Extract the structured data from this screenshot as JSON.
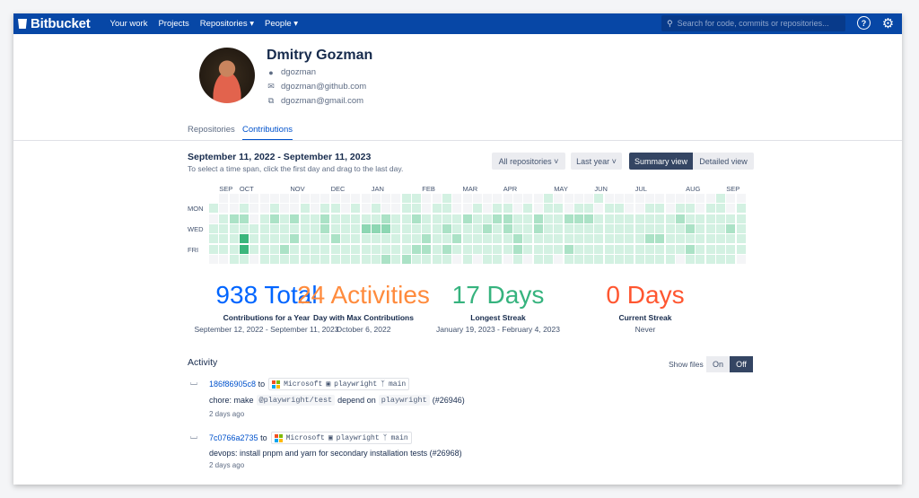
{
  "nav": {
    "brand": "Bitbucket",
    "items": [
      {
        "label": "Your work"
      },
      {
        "label": "Projects"
      },
      {
        "label": "Repositories",
        "dropdown": true
      },
      {
        "label": "People",
        "dropdown": true
      }
    ],
    "search_placeholder": "Search for code, commits or repositories...",
    "chevron": "▾"
  },
  "profile": {
    "name": "Dmitry Gozman",
    "username": "dgozman",
    "email1": "dgozman@github.com",
    "email2": "dgozman@gmail.com"
  },
  "tabs": [
    {
      "label": "Repositories",
      "active": false
    },
    {
      "label": "Contributions",
      "active": true
    }
  ],
  "contrib": {
    "range": "September 11, 2022 - September 11, 2023",
    "hint": "To select a time span, click the first day and drag to the last day.",
    "repo_filter": "All repositories ˅",
    "period_filter": "Last year ˅",
    "summary_view": "Summary view",
    "detailed_view": "Detailed view"
  },
  "heatmap": {
    "colors": [
      "#f4f5f7",
      "#d3f1e2",
      "#abe2c6",
      "#8dd7b3",
      "#3bb67c"
    ],
    "day_labels": [
      "MON",
      "WED",
      "FRI"
    ],
    "months": [
      {
        "label": "SEP",
        "week": 1
      },
      {
        "label": "OCT",
        "week": 3
      },
      {
        "label": "NOV",
        "week": 8
      },
      {
        "label": "DEC",
        "week": 12
      },
      {
        "label": "JAN",
        "week": 16
      },
      {
        "label": "FEB",
        "week": 21
      },
      {
        "label": "MAR",
        "week": 25
      },
      {
        "label": "APR",
        "week": 29
      },
      {
        "label": "MAY",
        "week": 34
      },
      {
        "label": "JUN",
        "week": 38
      },
      {
        "label": "JUL",
        "week": 42
      },
      {
        "label": "AUG",
        "week": 47
      },
      {
        "label": "SEP",
        "week": 51
      }
    ],
    "levels": [
      "-000000000000000000110010000000001000010000000000010",
      "10010010010110101001101100101101011011011001101101101",
      "01220121211211111211211112112211211222111111112111111",
      "11111111111211133311111211121211211111111111111211121",
      "11141111211121111111121121111121111111111112211111111",
      "11141112111111111111221211111121111211111111111211111",
      "0011011111111111121211110101101011011111111111011111"
    ]
  },
  "stats": [
    {
      "value": "938 Total",
      "label": "Contributions for a Year",
      "sub": "September 12, 2022 - September 11, 2023",
      "color": "#0065ff"
    },
    {
      "value": "24 Activities",
      "label": "Day with Max Contributions",
      "sub": "October 6, 2022",
      "color": "#ff8b3d"
    },
    {
      "value": "17 Days",
      "label": "Longest Streak",
      "sub": "January 19, 2023 - February 4, 2023",
      "color": "#36b37e"
    },
    {
      "value": "0 Days",
      "label": "Current Streak",
      "sub": "Never",
      "color": "#ff5630"
    }
  ],
  "activity": {
    "title": "Activity",
    "show_files": "Show files",
    "on": "On",
    "off": "Off",
    "off_selected": true,
    "commits": [
      {
        "hash": "186f86905c8",
        "to": "to",
        "org": "Microsoft",
        "repo": "playwright",
        "branch": "main",
        "msg_pre": "chore: make",
        "code1": "@playwright/test",
        "msg_mid": "depend on",
        "code2": "playwright",
        "msg_post": "(#26946)",
        "ago": "2 days ago"
      },
      {
        "hash": "7c0766a2735",
        "to": "to",
        "org": "Microsoft",
        "repo": "playwright",
        "branch": "main",
        "msg": "devops: install pnpm and yarn for secondary installation tests (#26968)",
        "ago": "2 days ago"
      }
    ]
  }
}
